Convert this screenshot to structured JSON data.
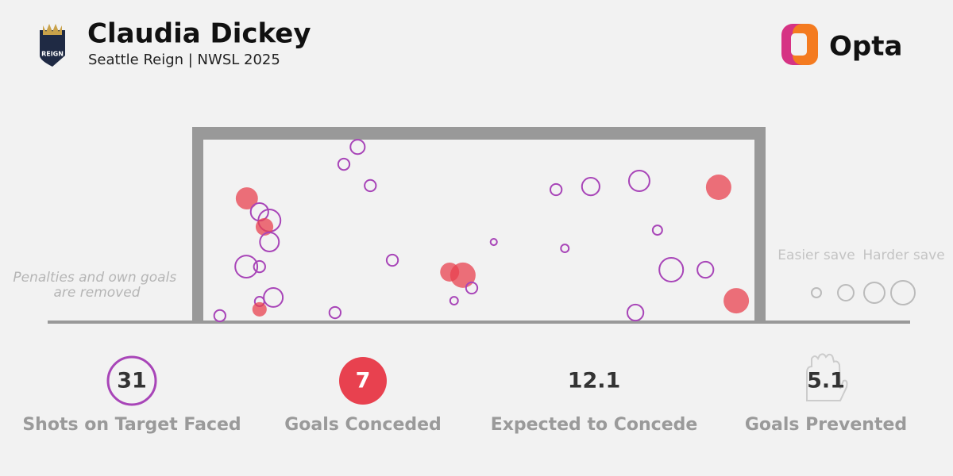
{
  "header": {
    "title": "Claudia Dickey",
    "subtitle": "Seattle Reign | NWSL 2025",
    "brand": "Opta"
  },
  "note": "Penalties and own goals are removed",
  "legend": {
    "easier": "Easier save",
    "harder": "Harder save"
  },
  "colors": {
    "shot": "#a845b8",
    "goal": "#e8414f"
  },
  "shots": [
    {
      "x": 28,
      "y": 96,
      "xg": 0.08,
      "goal": false
    },
    {
      "x": 25.5,
      "y": 86.5,
      "xg": 0.05,
      "goal": false
    },
    {
      "x": 30.3,
      "y": 74.8,
      "xg": 0.05,
      "goal": false
    },
    {
      "x": 7.9,
      "y": 67.8,
      "xg": 0.19,
      "goal": true
    },
    {
      "x": 10.2,
      "y": 60.4,
      "xg": 0.12,
      "goal": false
    },
    {
      "x": 12,
      "y": 55.7,
      "xg": 0.19,
      "goal": false
    },
    {
      "x": 11.1,
      "y": 52.2,
      "xg": 0.12,
      "goal": true
    },
    {
      "x": 12,
      "y": 43.9,
      "xg": 0.14,
      "goal": false
    },
    {
      "x": 7.8,
      "y": 30.4,
      "xg": 0.19,
      "goal": false
    },
    {
      "x": 10.2,
      "y": 30.4,
      "xg": 0.05,
      "goal": false
    },
    {
      "x": 34.3,
      "y": 33.9,
      "xg": 0.05,
      "goal": false
    },
    {
      "x": 12.7,
      "y": 13.5,
      "xg": 0.14,
      "goal": false
    },
    {
      "x": 10.2,
      "y": 11.3,
      "xg": 0.035,
      "goal": false
    },
    {
      "x": 10.2,
      "y": 7,
      "xg": 0.08,
      "goal": true
    },
    {
      "x": 3,
      "y": 3.5,
      "xg": 0.05,
      "goal": false
    },
    {
      "x": 23.9,
      "y": 5.2,
      "xg": 0.05,
      "goal": false
    },
    {
      "x": 44.7,
      "y": 27.4,
      "xg": 0.14,
      "goal": true
    },
    {
      "x": 47.1,
      "y": 25.7,
      "xg": 0.25,
      "goal": true
    },
    {
      "x": 48.7,
      "y": 18.7,
      "xg": 0.05,
      "goal": false
    },
    {
      "x": 45.5,
      "y": 11.7,
      "xg": 0.024,
      "goal": false
    },
    {
      "x": 52.7,
      "y": 43.9,
      "xg": 0.016,
      "goal": false
    },
    {
      "x": 64,
      "y": 72.6,
      "xg": 0.05,
      "goal": false
    },
    {
      "x": 70.3,
      "y": 74.3,
      "xg": 0.12,
      "goal": false
    },
    {
      "x": 79.1,
      "y": 77.4,
      "xg": 0.165,
      "goal": false
    },
    {
      "x": 93.5,
      "y": 73.9,
      "xg": 0.25,
      "goal": true
    },
    {
      "x": 82.4,
      "y": 50.4,
      "xg": 0.035,
      "goal": false
    },
    {
      "x": 65.6,
      "y": 40.4,
      "xg": 0.024,
      "goal": false
    },
    {
      "x": 84.9,
      "y": 28.7,
      "xg": 0.22,
      "goal": false
    },
    {
      "x": 91.1,
      "y": 28.7,
      "xg": 0.1,
      "goal": false
    },
    {
      "x": 96.7,
      "y": 11.7,
      "xg": 0.25,
      "goal": true
    },
    {
      "x": 78.4,
      "y": 5.2,
      "xg": 0.1,
      "goal": false
    }
  ],
  "stats": [
    {
      "value": 31,
      "label": "Shots on Target Faced"
    },
    {
      "value": 7,
      "label": "Goals Conceded"
    },
    {
      "value": 12.1,
      "label": "Expected to Concede"
    },
    {
      "value": 5.1,
      "label": "Goals Prevented"
    }
  ]
}
